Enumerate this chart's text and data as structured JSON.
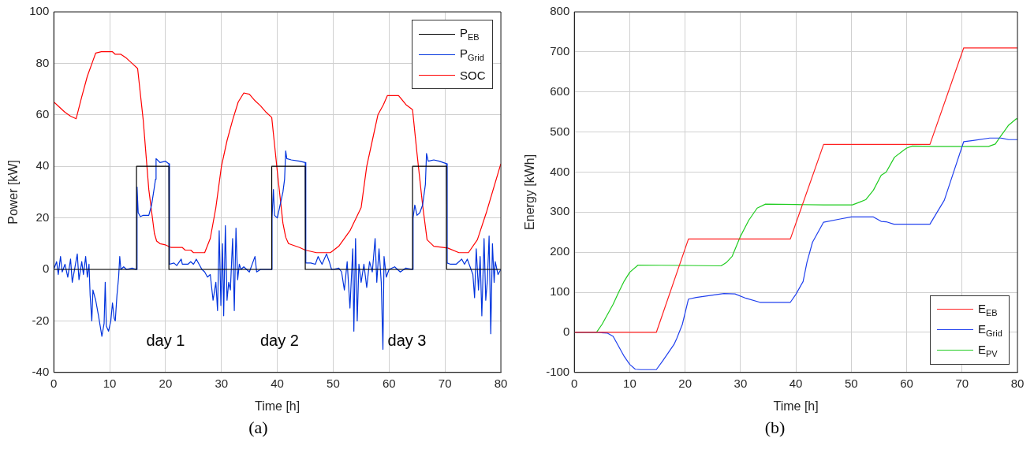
{
  "chart_data": [
    {
      "type": "line",
      "xlabel": "Time [h]",
      "ylabel": "Power [kW]",
      "xlim": [
        0,
        80
      ],
      "xticks": [
        0,
        10,
        20,
        30,
        40,
        50,
        60,
        70,
        80
      ],
      "ylim": [
        -40,
        100
      ],
      "yticks": [
        -40,
        -20,
        0,
        20,
        40,
        60,
        80,
        100
      ],
      "grid": true,
      "legend": "top right",
      "marker": "none",
      "line_style": "solid",
      "annotations": [
        "day 1",
        "day 2",
        "day 3",
        "(a)"
      ],
      "series": [
        {
          "name": "P$_{EB}$",
          "color": "#000000",
          "x": [
            0,
            14.8,
            14.8,
            20.6,
            20.6,
            39,
            39,
            45,
            45,
            64.2,
            64.2,
            70.3,
            70.3,
            80
          ],
          "values": [
            0,
            0,
            40,
            40,
            0,
            0,
            40,
            40,
            0,
            0,
            40,
            40,
            0,
            0
          ]
        },
        {
          "name": "P$_{Grid}$",
          "color": "#0033dd",
          "x": [
            0,
            0.5,
            0.8,
            1.2,
            1.5,
            2,
            2.5,
            3,
            3.3,
            3.8,
            4.2,
            4.5,
            5,
            5.3,
            5.7,
            6,
            6.3,
            6.5,
            6.8,
            7,
            7.5,
            8,
            8.3,
            8.6,
            9,
            9.2,
            9.4,
            9.8,
            10.2,
            10.5,
            10.8,
            11,
            11.3,
            11.6,
            11.8,
            12,
            12.5,
            13,
            14,
            14.8,
            14.9,
            15.1,
            15.5,
            16,
            17,
            17.5,
            18,
            18.2,
            18.3,
            19,
            20,
            20.6,
            20.7,
            21.5,
            22,
            22.8,
            23,
            24,
            24.5,
            25,
            25.5,
            26,
            26.5,
            27,
            27.5,
            28,
            28.5,
            29,
            29.3,
            29.6,
            29.9,
            30.2,
            30.4,
            30.7,
            31,
            31.3,
            31.6,
            32,
            32.3,
            32.6,
            32.9,
            33.2,
            33.5,
            34,
            35,
            36,
            36.3,
            37,
            38,
            39,
            39.05,
            39.3,
            39.5,
            40,
            40.5,
            41,
            41.3,
            41.5,
            41.7,
            42.5,
            44,
            45,
            45.1,
            46,
            46.8,
            47.3,
            48,
            48.8,
            49.3,
            49.7,
            50,
            51,
            51.5,
            52,
            52.5,
            53,
            53.5,
            53.7,
            54,
            54.3,
            54.6,
            55,
            55.5,
            56,
            56.5,
            57,
            57.5,
            57.8,
            58.2,
            58.6,
            58.9,
            59.1,
            59.5,
            60,
            61,
            62,
            63,
            64.2,
            64.3,
            64.6,
            65,
            65.5,
            66,
            66.5,
            66.7,
            67,
            68,
            69,
            70.3,
            70.4,
            71,
            72,
            72.5,
            73,
            73.5,
            74,
            74.5,
            75,
            75.3,
            75.6,
            76,
            76.3,
            76.6,
            77,
            77.3,
            77.6,
            77.9,
            78.2,
            78.5,
            78.8,
            79,
            79.5,
            80
          ],
          "values": [
            0,
            3,
            -2,
            5,
            -1,
            2,
            -3,
            4,
            -5,
            1,
            6,
            -4,
            3,
            -2,
            5,
            -3,
            2,
            -10,
            -20,
            -8,
            -12,
            -18,
            -22,
            -26,
            -21,
            -5,
            -22,
            -24,
            -20,
            -13,
            -19,
            -20,
            -10,
            -3,
            5,
            0,
            1,
            0,
            0.5,
            0,
            32,
            22,
            20.5,
            21,
            21,
            25,
            32,
            35,
            43,
            41.5,
            42,
            41,
            2,
            2.5,
            1.5,
            4,
            2,
            2,
            3,
            2,
            4,
            2,
            0,
            -1,
            -3,
            -2,
            -12,
            -5,
            -16,
            15,
            -14,
            10,
            -18,
            17,
            -12,
            -5,
            -8,
            12,
            -16,
            16,
            -4,
            2,
            0,
            1,
            -1,
            5,
            -1,
            0,
            0,
            0,
            20,
            31,
            21,
            20,
            25,
            30,
            35,
            46,
            43,
            42.5,
            42,
            41.5,
            2.5,
            2.5,
            2,
            5,
            2,
            6,
            3,
            0,
            0,
            0.5,
            -1,
            -8,
            3,
            -15,
            8,
            -24,
            12,
            -20,
            2,
            -5,
            2,
            -7,
            3,
            -1,
            12,
            -5,
            8,
            -5,
            -31,
            5,
            -3,
            0,
            1,
            -1,
            0.5,
            0,
            20,
            25,
            21,
            22,
            25,
            33,
            45,
            42,
            42.5,
            42,
            41,
            2.5,
            2,
            2,
            3,
            4,
            2,
            4,
            1,
            -2,
            -11,
            8,
            -8,
            5,
            -18,
            12,
            -12,
            -4,
            13,
            -25,
            10,
            -5,
            3,
            -2,
            0
          ]
        },
        {
          "name": "SOC",
          "color": "#ff0000",
          "x": [
            0,
            1,
            2,
            3,
            4,
            5,
            6,
            7,
            7.5,
            8.5,
            10.5,
            11,
            12,
            13,
            14,
            15,
            16,
            17,
            18,
            18.4,
            19,
            20,
            21,
            23,
            23.5,
            24.5,
            25,
            27,
            28,
            29,
            30,
            31,
            32,
            33,
            34,
            35,
            36,
            37,
            38,
            39,
            40,
            41,
            41.5,
            42,
            44,
            45,
            47,
            49.5,
            51,
            53,
            55,
            56,
            57,
            58,
            59,
            59.7,
            61.7,
            63,
            64.2,
            65,
            66,
            66.8,
            68,
            70.5,
            72.5,
            74.2,
            75.8,
            77.4,
            80
          ],
          "values": [
            65,
            63,
            61,
            59.5,
            58.5,
            67,
            75,
            81,
            84,
            84.5,
            84.5,
            83.5,
            83.5,
            82,
            80,
            78,
            58,
            31,
            14,
            11,
            10,
            9.5,
            8.5,
            8.5,
            7.5,
            7.5,
            6.5,
            6.5,
            12,
            24,
            40,
            50,
            58,
            65,
            68.5,
            68,
            65.5,
            63.5,
            61,
            59,
            38,
            18,
            12.5,
            10,
            8.5,
            7.5,
            6.5,
            6.5,
            9,
            15,
            24,
            40,
            50,
            60,
            64,
            67.5,
            67.5,
            64,
            62,
            45,
            25,
            11.5,
            9,
            8.3,
            6.5,
            6.5,
            11.5,
            22,
            41
          ]
        }
      ]
    },
    {
      "type": "line",
      "xlabel": "Time [h]",
      "ylabel": "Energy [kWh]",
      "xlim": [
        0,
        80
      ],
      "xticks": [
        0,
        10,
        20,
        30,
        40,
        50,
        60,
        70,
        80
      ],
      "ylim": [
        -100,
        800
      ],
      "yticks": [
        -100,
        0,
        100,
        200,
        300,
        400,
        500,
        600,
        700,
        800
      ],
      "grid": true,
      "legend": "bottom right",
      "marker": "none",
      "line_style": "solid",
      "annotations": [
        "(b)"
      ],
      "series": [
        {
          "name": "E$_{EB}$",
          "color": "#ff2020",
          "x": [
            0,
            14.8,
            20.6,
            39,
            45,
            64.2,
            70.3,
            80
          ],
          "values": [
            0,
            0,
            233,
            233,
            469,
            469,
            710,
            710
          ]
        },
        {
          "name": "E$_{Grid}$",
          "color": "#2040ee",
          "x": [
            0,
            4,
            6,
            7,
            8,
            9,
            10,
            11,
            12,
            14.8,
            16,
            17,
            18,
            18.5,
            19.5,
            20.6,
            22,
            27,
            29,
            31,
            33.5,
            39,
            40,
            41.3,
            42,
            43,
            45,
            48,
            50,
            54,
            55.4,
            56.3,
            57.7,
            64.2,
            65.5,
            66.8,
            68,
            70.3,
            72,
            75,
            77,
            78.4,
            80
          ],
          "values": [
            0,
            0,
            -2,
            -10,
            -35,
            -60,
            -80,
            -92,
            -93,
            -93,
            -70,
            -50,
            -30,
            -15,
            20,
            83,
            87,
            97,
            96,
            85,
            75,
            75,
            95,
            127,
            175,
            225,
            275,
            283,
            288,
            288,
            277,
            276,
            270,
            270,
            300,
            330,
            380,
            476,
            479,
            485,
            485,
            481,
            481
          ]
        },
        {
          "name": "E$_{PV}$",
          "color": "#20cc20",
          "x": [
            0,
            4,
            5,
            6,
            7,
            8,
            9,
            10,
            11.5,
            20,
            26.5,
            27.5,
            28.5,
            30,
            31.5,
            33,
            34.5,
            40,
            45,
            50.2,
            51.5,
            52.6,
            54,
            55.4,
            56.3,
            57.8,
            59.5,
            60,
            61,
            65,
            74.8,
            76,
            77,
            78.4,
            79.8,
            80
          ],
          "values": [
            0,
            0,
            20,
            45,
            70,
            100,
            128,
            150,
            168,
            167,
            166,
            175,
            190,
            240,
            280,
            310,
            320,
            319,
            318,
            318,
            325,
            331,
            355,
            392,
            400,
            437,
            455,
            460,
            465,
            464,
            464,
            470,
            490,
            517,
            533,
            533
          ]
        }
      ]
    }
  ]
}
